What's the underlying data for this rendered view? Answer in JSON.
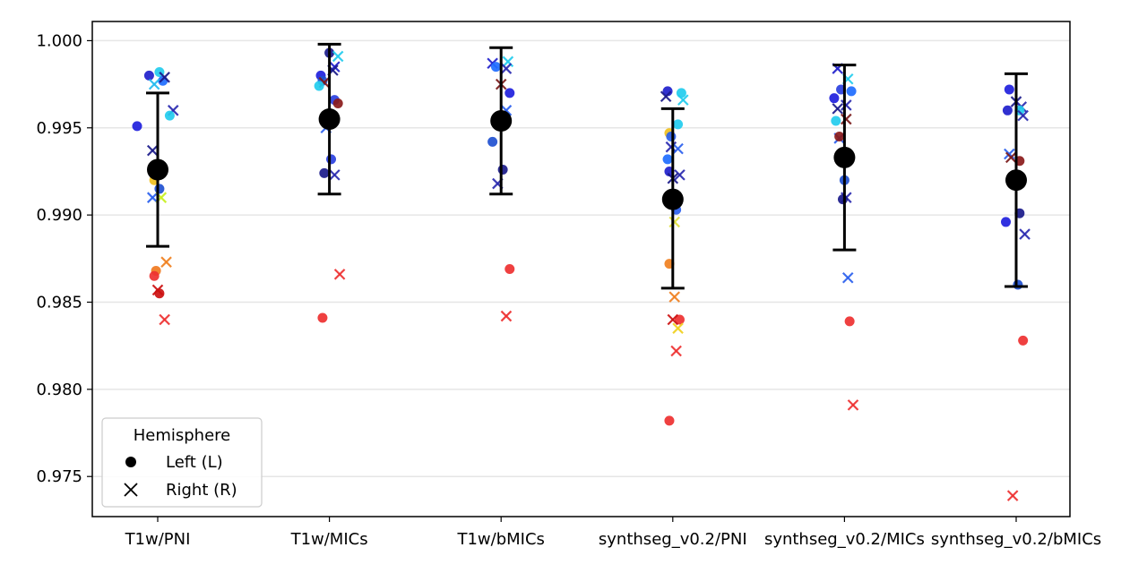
{
  "chart_data": {
    "type": "scatter",
    "categories": [
      "T1w/PNI",
      "T1w/MICs",
      "T1w/bMICs",
      "synthseg_v0.2/PNI",
      "synthseg_v0.2/MICs",
      "synthseg_v0.2/bMICs"
    ],
    "ylim": [
      0.9727,
      1.0011
    ],
    "yticks": [
      "0.975",
      "0.980",
      "0.985",
      "0.990",
      "0.995",
      "1.000"
    ],
    "grid": "horizontal",
    "legend": {
      "title": "Hemisphere",
      "placement": "lower-left",
      "entries": [
        {
          "label": "Left (L)",
          "marker": "circle"
        },
        {
          "label": "Right (R)",
          "marker": "x"
        }
      ]
    },
    "summary": [
      {
        "category": "T1w/PNI",
        "mean": 0.9926,
        "lower": 0.9882,
        "upper": 0.997
      },
      {
        "category": "T1w/MICs",
        "mean": 0.9955,
        "lower": 0.9912,
        "upper": 0.9998
      },
      {
        "category": "T1w/bMICs",
        "mean": 0.9954,
        "lower": 0.9912,
        "upper": 0.9996
      },
      {
        "category": "synthseg_v0.2/PNI",
        "mean": 0.9909,
        "lower": 0.9858,
        "upper": 0.9961
      },
      {
        "category": "synthseg_v0.2/MICs",
        "mean": 0.9933,
        "lower": 0.988,
        "upper": 0.9986
      },
      {
        "category": "synthseg_v0.2/bMICs",
        "mean": 0.992,
        "lower": 0.9859,
        "upper": 0.9981
      }
    ],
    "points": [
      {
        "c": 0,
        "dx": -0.05,
        "y": 0.998,
        "h": "L",
        "col": "#2020cc"
      },
      {
        "c": 0,
        "dx": 0.01,
        "y": 0.9982,
        "h": "L",
        "col": "#22ccee"
      },
      {
        "c": 0,
        "dx": 0.03,
        "y": 0.9977,
        "h": "L",
        "col": "#1e6cff"
      },
      {
        "c": 0,
        "dx": -0.02,
        "y": 0.9975,
        "h": "R",
        "col": "#22bbee"
      },
      {
        "c": 0,
        "dx": 0.04,
        "y": 0.9979,
        "h": "R",
        "col": "#1a1a8a"
      },
      {
        "c": 0,
        "dx": 0.09,
        "y": 0.996,
        "h": "R",
        "col": "#2a2ab0"
      },
      {
        "c": 0,
        "dx": 0.07,
        "y": 0.9957,
        "h": "L",
        "col": "#22ccee"
      },
      {
        "c": 0,
        "dx": -0.12,
        "y": 0.9951,
        "h": "L",
        "col": "#2020dd"
      },
      {
        "c": 0,
        "dx": -0.03,
        "y": 0.9937,
        "h": "R",
        "col": "#1a1a8a"
      },
      {
        "c": 0,
        "dx": -0.03,
        "y": 0.991,
        "h": "R",
        "col": "#2a60ee"
      },
      {
        "c": 0,
        "dx": 0.01,
        "y": 0.9915,
        "h": "L",
        "col": "#1f50d0"
      },
      {
        "c": 0,
        "dx": 0.02,
        "y": 0.991,
        "h": "R",
        "col": "#c8f020"
      },
      {
        "c": 0,
        "dx": -0.02,
        "y": 0.992,
        "h": "L",
        "col": "#f0c020"
      },
      {
        "c": 0,
        "dx": 0.05,
        "y": 0.9873,
        "h": "R",
        "col": "#f08020"
      },
      {
        "c": 0,
        "dx": -0.01,
        "y": 0.9868,
        "h": "L",
        "col": "#f07a20"
      },
      {
        "c": 0,
        "dx": -0.02,
        "y": 0.9865,
        "h": "L",
        "col": "#ee3030"
      },
      {
        "c": 0,
        "dx": 0.0,
        "y": 0.9857,
        "h": "R",
        "col": "#cc1010"
      },
      {
        "c": 0,
        "dx": 0.01,
        "y": 0.9855,
        "h": "L",
        "col": "#cc1010"
      },
      {
        "c": 0,
        "dx": 0.04,
        "y": 0.984,
        "h": "R",
        "col": "#ee3030"
      },
      {
        "c": 1,
        "dx": 0.0,
        "y": 0.9993,
        "h": "L",
        "col": "#1a1a8a"
      },
      {
        "c": 1,
        "dx": 0.05,
        "y": 0.9991,
        "h": "R",
        "col": "#22ccee"
      },
      {
        "c": 1,
        "dx": 0.03,
        "y": 0.9985,
        "h": "R",
        "col": "#2020cc"
      },
      {
        "c": 1,
        "dx": 0.02,
        "y": 0.9983,
        "h": "R",
        "col": "#1a1a8a"
      },
      {
        "c": 1,
        "dx": -0.05,
        "y": 0.998,
        "h": "L",
        "col": "#2020dd"
      },
      {
        "c": 1,
        "dx": -0.04,
        "y": 0.9977,
        "h": "L",
        "col": "#1f50d0"
      },
      {
        "c": 1,
        "dx": -0.03,
        "y": 0.9976,
        "h": "R",
        "col": "#7a1a1a"
      },
      {
        "c": 1,
        "dx": -0.06,
        "y": 0.9974,
        "h": "L",
        "col": "#22ccee"
      },
      {
        "c": 1,
        "dx": 0.03,
        "y": 0.9966,
        "h": "L",
        "col": "#2a40e0"
      },
      {
        "c": 1,
        "dx": 0.05,
        "y": 0.9964,
        "h": "L",
        "col": "#8a1a1a"
      },
      {
        "c": 1,
        "dx": -0.02,
        "y": 0.995,
        "h": "R",
        "col": "#2a60ee"
      },
      {
        "c": 1,
        "dx": 0.01,
        "y": 0.9932,
        "h": "L",
        "col": "#2a40e0"
      },
      {
        "c": 1,
        "dx": -0.03,
        "y": 0.9924,
        "h": "L",
        "col": "#1a1a8a"
      },
      {
        "c": 1,
        "dx": 0.03,
        "y": 0.9923,
        "h": "R",
        "col": "#2a2ab0"
      },
      {
        "c": 1,
        "dx": 0.06,
        "y": 0.9866,
        "h": "R",
        "col": "#ee3030"
      },
      {
        "c": 1,
        "dx": -0.04,
        "y": 0.9841,
        "h": "L",
        "col": "#ee3030"
      },
      {
        "c": 2,
        "dx": 0.04,
        "y": 0.9988,
        "h": "R",
        "col": "#22ccee"
      },
      {
        "c": 2,
        "dx": -0.05,
        "y": 0.9987,
        "h": "R",
        "col": "#2020cc"
      },
      {
        "c": 2,
        "dx": -0.03,
        "y": 0.9985,
        "h": "L",
        "col": "#1e6cff"
      },
      {
        "c": 2,
        "dx": 0.03,
        "y": 0.9984,
        "h": "R",
        "col": "#2a2ab0"
      },
      {
        "c": 2,
        "dx": 0.0,
        "y": 0.9975,
        "h": "R",
        "col": "#7a1a1a"
      },
      {
        "c": 2,
        "dx": 0.05,
        "y": 0.997,
        "h": "L",
        "col": "#2020dd"
      },
      {
        "c": 2,
        "dx": 0.03,
        "y": 0.996,
        "h": "R",
        "col": "#2a60ee"
      },
      {
        "c": 2,
        "dx": -0.05,
        "y": 0.9942,
        "h": "L",
        "col": "#1f50d0"
      },
      {
        "c": 2,
        "dx": 0.01,
        "y": 0.9926,
        "h": "L",
        "col": "#1a1a8a"
      },
      {
        "c": 2,
        "dx": -0.02,
        "y": 0.9918,
        "h": "R",
        "col": "#2a2ab0"
      },
      {
        "c": 2,
        "dx": 0.05,
        "y": 0.9869,
        "h": "L",
        "col": "#ee3030"
      },
      {
        "c": 2,
        "dx": 0.03,
        "y": 0.9842,
        "h": "R",
        "col": "#ee3030"
      },
      {
        "c": 3,
        "dx": -0.03,
        "y": 0.9971,
        "h": "L",
        "col": "#2020cc"
      },
      {
        "c": 3,
        "dx": 0.05,
        "y": 0.997,
        "h": "L",
        "col": "#22ccee"
      },
      {
        "c": 3,
        "dx": -0.04,
        "y": 0.9968,
        "h": "R",
        "col": "#1a1a8a"
      },
      {
        "c": 3,
        "dx": 0.06,
        "y": 0.9966,
        "h": "R",
        "col": "#22ccee"
      },
      {
        "c": 3,
        "dx": 0.03,
        "y": 0.9952,
        "h": "L",
        "col": "#22ccee"
      },
      {
        "c": 3,
        "dx": -0.02,
        "y": 0.9947,
        "h": "L",
        "col": "#f0c020"
      },
      {
        "c": 3,
        "dx": -0.01,
        "y": 0.9945,
        "h": "L",
        "col": "#2a60ee"
      },
      {
        "c": 3,
        "dx": -0.01,
        "y": 0.9939,
        "h": "R",
        "col": "#2a2ab0"
      },
      {
        "c": 3,
        "dx": 0.03,
        "y": 0.9938,
        "h": "R",
        "col": "#2a60ee"
      },
      {
        "c": 3,
        "dx": -0.03,
        "y": 0.9932,
        "h": "L",
        "col": "#1e6cff"
      },
      {
        "c": 3,
        "dx": -0.02,
        "y": 0.9925,
        "h": "L",
        "col": "#2020cc"
      },
      {
        "c": 3,
        "dx": 0.04,
        "y": 0.9923,
        "h": "R",
        "col": "#2a2ab0"
      },
      {
        "c": 3,
        "dx": 0.0,
        "y": 0.9921,
        "h": "R",
        "col": "#1a1a8a"
      },
      {
        "c": 3,
        "dx": 0.02,
        "y": 0.9903,
        "h": "L",
        "col": "#2a60ee"
      },
      {
        "c": 3,
        "dx": 0.01,
        "y": 0.9896,
        "h": "R",
        "col": "#e0e040"
      },
      {
        "c": 3,
        "dx": -0.02,
        "y": 0.9872,
        "h": "L",
        "col": "#f08020"
      },
      {
        "c": 3,
        "dx": 0.01,
        "y": 0.9853,
        "h": "R",
        "col": "#f08020"
      },
      {
        "c": 3,
        "dx": 0.04,
        "y": 0.984,
        "h": "L",
        "col": "#ee3030"
      },
      {
        "c": 3,
        "dx": 0.0,
        "y": 0.984,
        "h": "R",
        "col": "#cc1010"
      },
      {
        "c": 3,
        "dx": 0.03,
        "y": 0.9835,
        "h": "R",
        "col": "#f0d020"
      },
      {
        "c": 3,
        "dx": 0.02,
        "y": 0.9822,
        "h": "R",
        "col": "#ee3030"
      },
      {
        "c": 3,
        "dx": -0.02,
        "y": 0.9782,
        "h": "L",
        "col": "#ee3030"
      },
      {
        "c": 4,
        "dx": -0.04,
        "y": 0.9984,
        "h": "R",
        "col": "#2020cc"
      },
      {
        "c": 4,
        "dx": 0.02,
        "y": 0.9978,
        "h": "R",
        "col": "#22ccee"
      },
      {
        "c": 4,
        "dx": -0.02,
        "y": 0.9972,
        "h": "L",
        "col": "#2a40e0"
      },
      {
        "c": 4,
        "dx": 0.04,
        "y": 0.9971,
        "h": "L",
        "col": "#1e6cff"
      },
      {
        "c": 4,
        "dx": -0.06,
        "y": 0.9967,
        "h": "L",
        "col": "#2020dd"
      },
      {
        "c": 4,
        "dx": -0.04,
        "y": 0.9961,
        "h": "R",
        "col": "#1a1a8a"
      },
      {
        "c": 4,
        "dx": 0.01,
        "y": 0.9963,
        "h": "R",
        "col": "#2a2ab0"
      },
      {
        "c": 4,
        "dx": 0.01,
        "y": 0.9955,
        "h": "R",
        "col": "#7a1a1a"
      },
      {
        "c": 4,
        "dx": -0.05,
        "y": 0.9954,
        "h": "L",
        "col": "#22ccee"
      },
      {
        "c": 4,
        "dx": -0.03,
        "y": 0.9944,
        "h": "R",
        "col": "#2a60ee"
      },
      {
        "c": 4,
        "dx": -0.03,
        "y": 0.9945,
        "h": "L",
        "col": "#8a1a1a"
      },
      {
        "c": 4,
        "dx": 0.0,
        "y": 0.992,
        "h": "L",
        "col": "#1f50d0"
      },
      {
        "c": 4,
        "dx": 0.01,
        "y": 0.991,
        "h": "R",
        "col": "#2a2ab0"
      },
      {
        "c": 4,
        "dx": -0.01,
        "y": 0.9909,
        "h": "L",
        "col": "#1a1a8a"
      },
      {
        "c": 4,
        "dx": 0.02,
        "y": 0.9864,
        "h": "R",
        "col": "#2a60ee"
      },
      {
        "c": 4,
        "dx": 0.03,
        "y": 0.9839,
        "h": "L",
        "col": "#ee3030"
      },
      {
        "c": 4,
        "dx": 0.05,
        "y": 0.9791,
        "h": "R",
        "col": "#ee3030"
      },
      {
        "c": 5,
        "dx": -0.04,
        "y": 0.9972,
        "h": "L",
        "col": "#2020dd"
      },
      {
        "c": 5,
        "dx": 0.0,
        "y": 0.9965,
        "h": "R",
        "col": "#1a1a8a"
      },
      {
        "c": 5,
        "dx": 0.03,
        "y": 0.9962,
        "h": "R",
        "col": "#2a2ab0"
      },
      {
        "c": 5,
        "dx": 0.02,
        "y": 0.996,
        "h": "L",
        "col": "#22ccee"
      },
      {
        "c": 5,
        "dx": -0.05,
        "y": 0.996,
        "h": "L",
        "col": "#2020cc"
      },
      {
        "c": 5,
        "dx": 0.04,
        "y": 0.9957,
        "h": "R",
        "col": "#2a2ab0"
      },
      {
        "c": 5,
        "dx": -0.04,
        "y": 0.9935,
        "h": "R",
        "col": "#2a60ee"
      },
      {
        "c": 5,
        "dx": -0.03,
        "y": 0.9933,
        "h": "R",
        "col": "#7a1a1a"
      },
      {
        "c": 5,
        "dx": 0.02,
        "y": 0.9931,
        "h": "L",
        "col": "#8a1a1a"
      },
      {
        "c": 5,
        "dx": 0.02,
        "y": 0.9901,
        "h": "L",
        "col": "#1a1a8a"
      },
      {
        "c": 5,
        "dx": -0.06,
        "y": 0.9896,
        "h": "L",
        "col": "#2020dd"
      },
      {
        "c": 5,
        "dx": 0.05,
        "y": 0.9889,
        "h": "R",
        "col": "#2a2ab0"
      },
      {
        "c": 5,
        "dx": 0.01,
        "y": 0.986,
        "h": "L",
        "col": "#1f50d0"
      },
      {
        "c": 5,
        "dx": 0.04,
        "y": 0.9828,
        "h": "L",
        "col": "#ee3030"
      },
      {
        "c": 5,
        "dx": -0.02,
        "y": 0.9739,
        "h": "R",
        "col": "#ee3030"
      }
    ]
  }
}
